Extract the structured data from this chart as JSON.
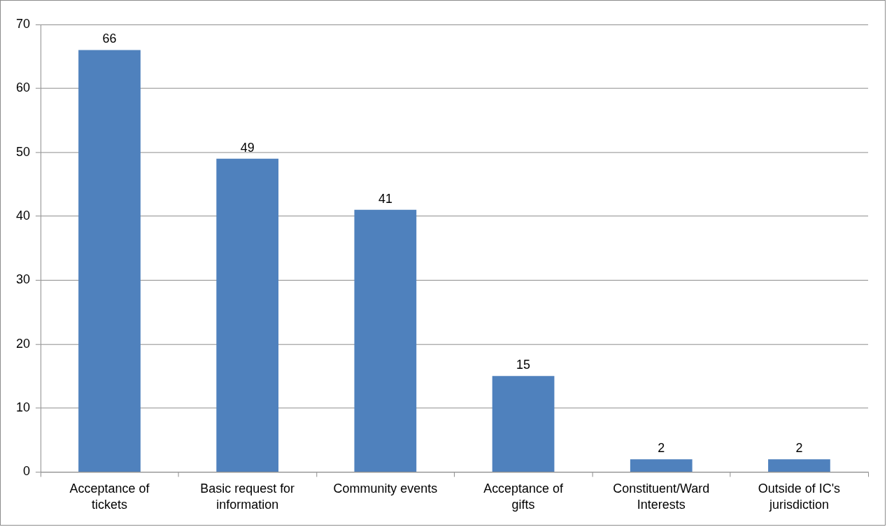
{
  "chart_data": {
    "type": "bar",
    "categories": [
      "Acceptance of tickets",
      "Basic request for information",
      "Community events",
      "Acceptance of gifts",
      "Constituent/Ward Interests",
      "Outside of IC's jurisdiction"
    ],
    "values": [
      66,
      49,
      41,
      15,
      2,
      2
    ],
    "color": "#4f81bd",
    "ylim": [
      0,
      70
    ],
    "yticks": [
      0,
      10,
      20,
      30,
      40,
      50,
      60,
      70
    ],
    "grid": "y",
    "data_labels": true,
    "legend": false
  }
}
